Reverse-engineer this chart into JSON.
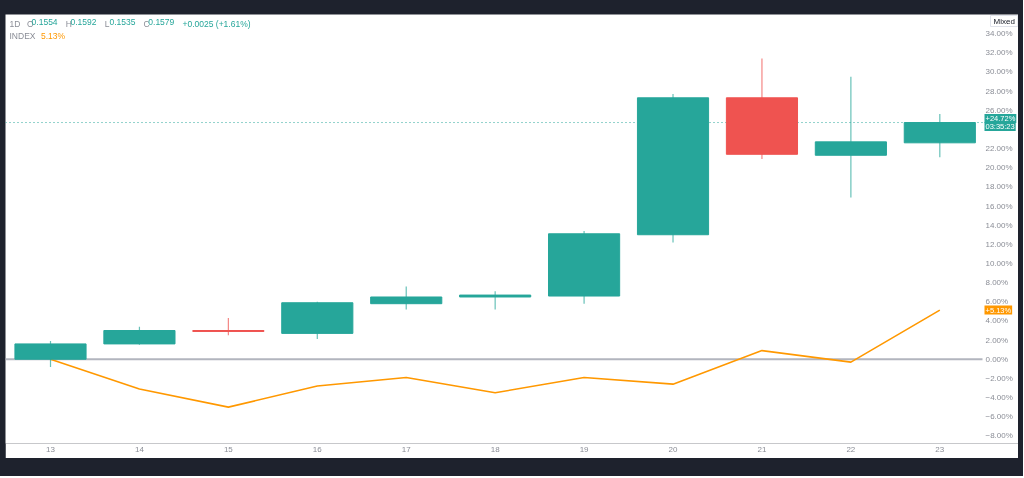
{
  "chart_data": {
    "type": "candlestick",
    "title": "1D",
    "categories": [
      "13",
      "14",
      "15",
      "16",
      "17",
      "18",
      "19",
      "20",
      "21",
      "22",
      "23"
    ],
    "ohlc": [
      [
        0,
        1.9,
        -0.8,
        1.6
      ],
      [
        1.6,
        3.4,
        1.5,
        3.0
      ],
      [
        3.0,
        4.3,
        2.5,
        2.9
      ],
      [
        2.7,
        6.0,
        2.1,
        5.9
      ],
      [
        5.8,
        7.6,
        5.2,
        6.5
      ],
      [
        6.5,
        7.1,
        5.2,
        6.7
      ],
      [
        6.6,
        13.4,
        5.8,
        13.1
      ],
      [
        13.0,
        27.7,
        12.2,
        27.3
      ],
      [
        27.3,
        31.4,
        20.9,
        21.4
      ],
      [
        21.3,
        29.5,
        16.9,
        22.7
      ],
      [
        22.6,
        25.6,
        21.1,
        24.72
      ]
    ],
    "colors": [
      "#26a69a",
      "#26a69a",
      "#ef5350",
      "#26a69a",
      "#26a69a",
      "#26a69a",
      "#26a69a",
      "#26a69a",
      "#ef5350",
      "#26a69a",
      "#26a69a"
    ],
    "series": [
      {
        "type": "line",
        "color": "#ff9800",
        "values": [
          0,
          -3.1,
          -5.0,
          -2.8,
          -1.9,
          -3.5,
          -1.9,
          -2.6,
          0.9,
          -0.3,
          5.13
        ]
      }
    ],
    "ylim": [
      -8.8,
      36
    ],
    "yticks": [
      {
        "value": -8,
        "label": "−8.00%"
      },
      {
        "value": -6,
        "label": "−6.00%"
      },
      {
        "value": -4,
        "label": "−4.00%"
      },
      {
        "value": -2,
        "label": "−2.00%"
      },
      {
        "value": 0,
        "label": "0.00%"
      },
      {
        "value": 2,
        "label": "2.00%"
      },
      {
        "value": 4,
        "label": "4.00%"
      },
      {
        "value": 6,
        "label": "6.00%"
      },
      {
        "value": 8,
        "label": "8.00%"
      },
      {
        "value": 10,
        "label": "10.00%"
      },
      {
        "value": 12,
        "label": "12.00%"
      },
      {
        "value": 14,
        "label": "14.00%"
      },
      {
        "value": 16,
        "label": "16.00%"
      },
      {
        "value": 18,
        "label": "18.00%"
      },
      {
        "value": 20,
        "label": "20.00%"
      },
      {
        "value": 22,
        "label": "22.00%"
      },
      {
        "value": 26,
        "label": "26.00%"
      },
      {
        "value": 28,
        "label": "28.00%"
      },
      {
        "value": 30,
        "label": "30.00%"
      },
      {
        "value": 32,
        "label": "32.00%"
      },
      {
        "value": 34,
        "label": "34.00%"
      }
    ],
    "ref_lines": [
      {
        "axis": "y",
        "value": 0,
        "color": "#b2b5be",
        "line_style": "solid"
      },
      {
        "axis": "y",
        "value": 24.72,
        "label": "+24.72%",
        "color": "#26a69a",
        "line_style": "dotted"
      }
    ],
    "annotations": [
      "O0.1554",
      "H0.1592",
      "L0.1535",
      "C0.1579",
      "+0.0025 (+1.61%)",
      "INDEX",
      "5.13%",
      "03:35:23",
      "Mixed",
      {
        "text": "+5.13%",
        "y": 5.13
      }
    ]
  }
}
